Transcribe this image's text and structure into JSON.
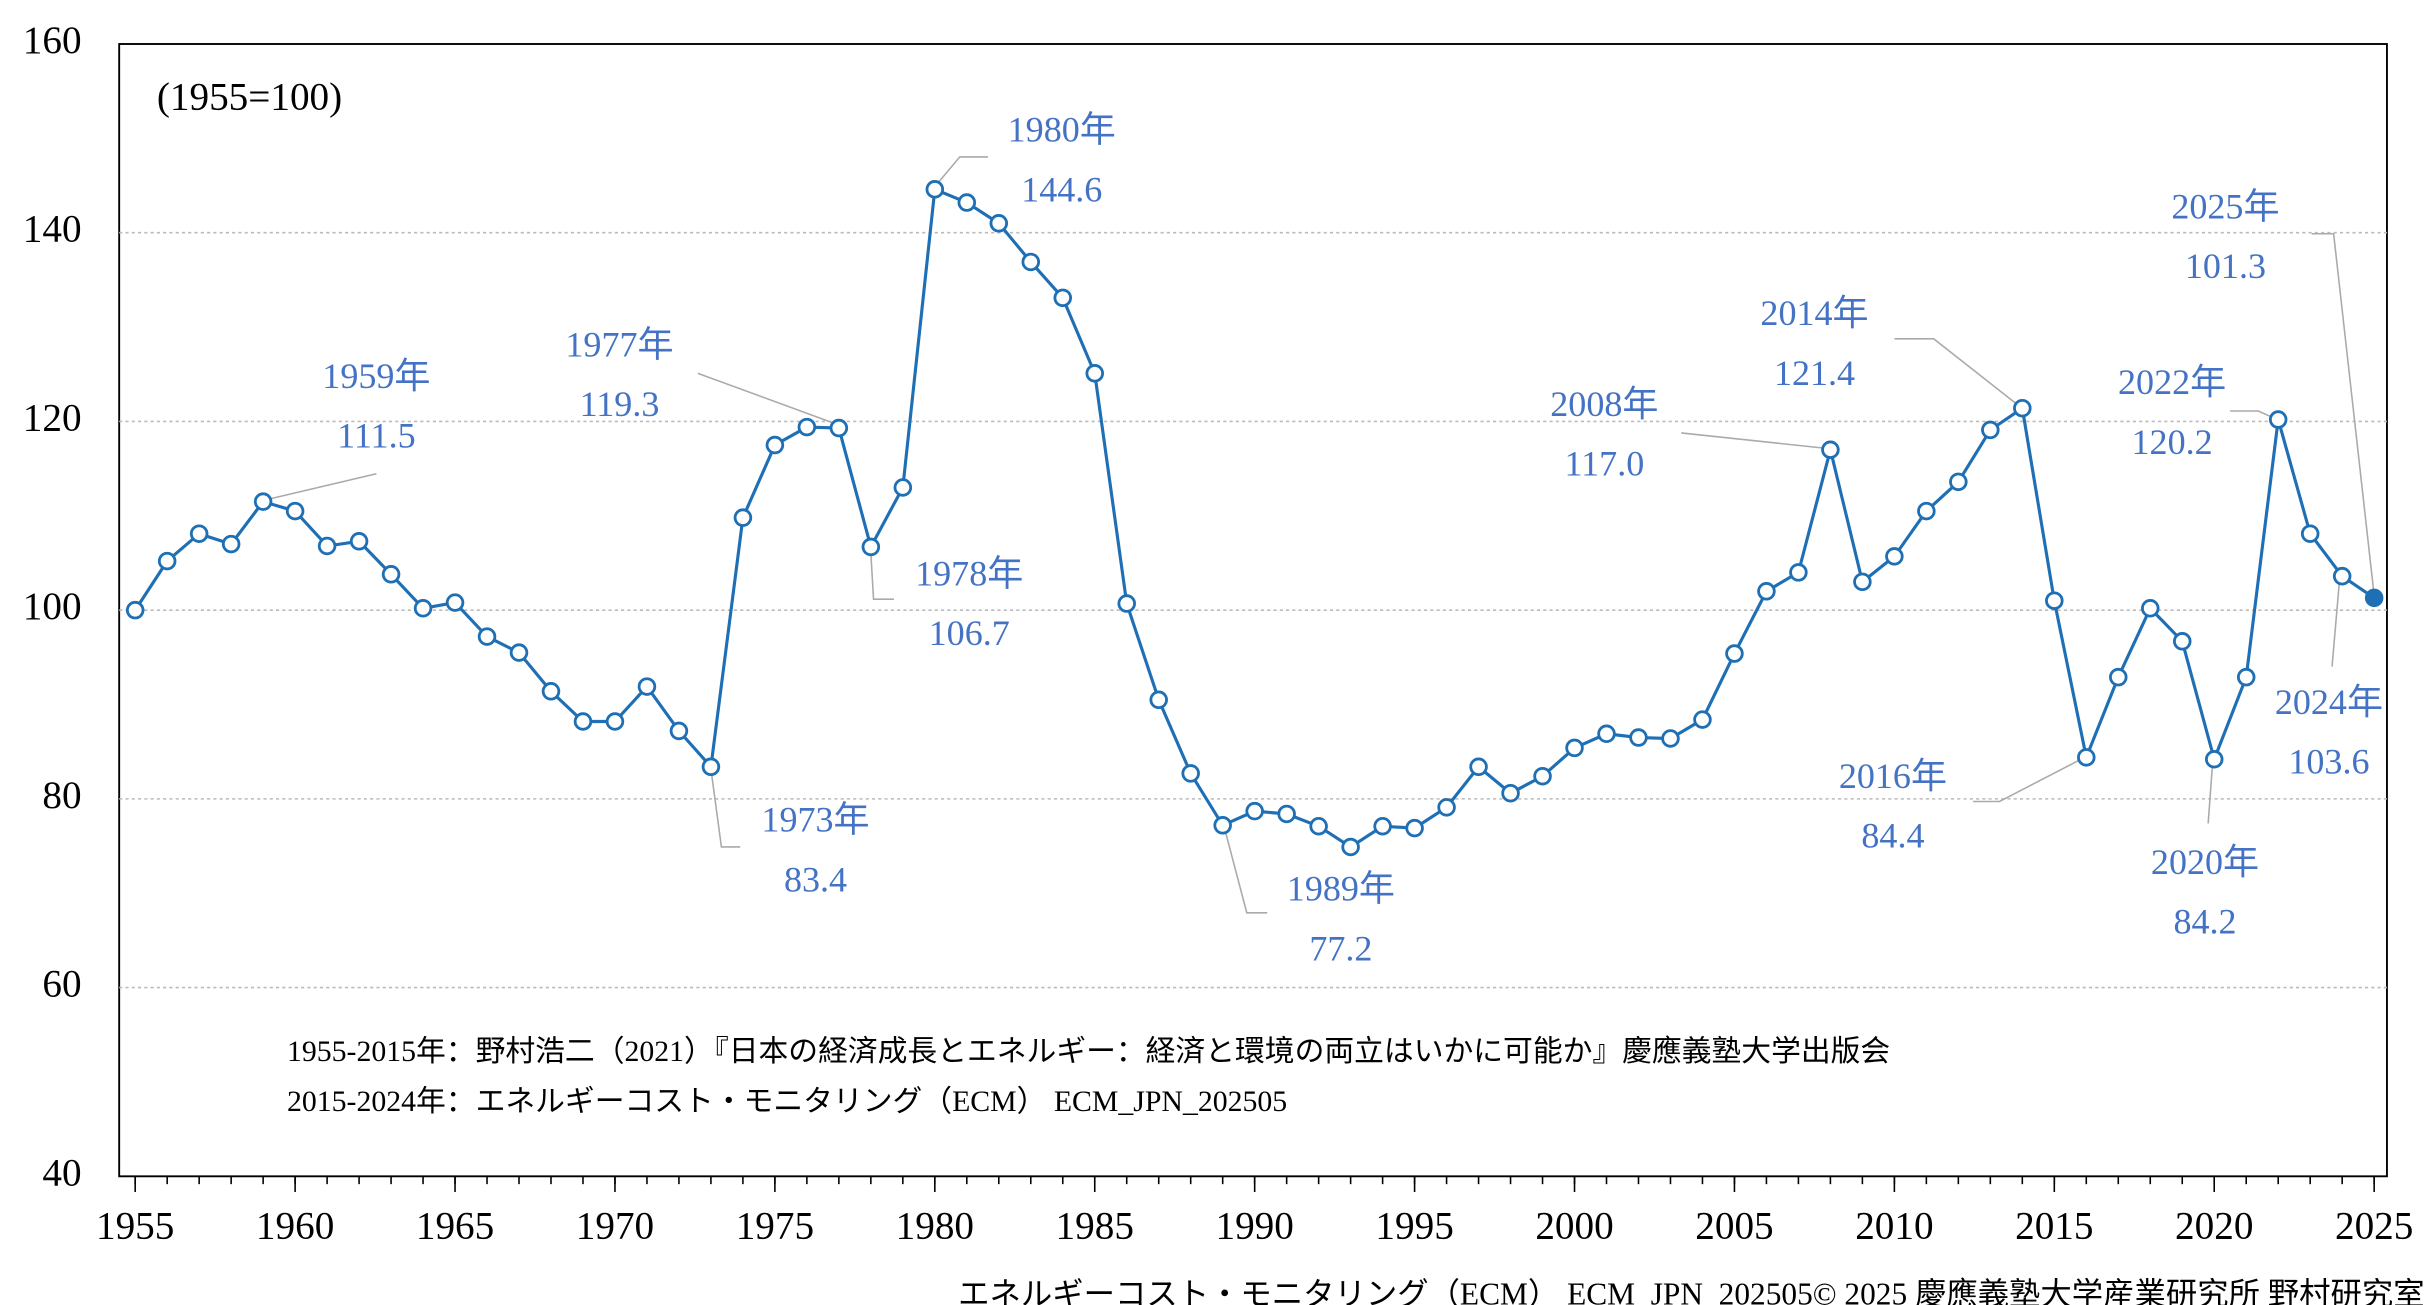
{
  "chart_data": {
    "type": "line",
    "note": "(1955=100)",
    "x": [
      1955,
      1956,
      1957,
      1958,
      1959,
      1960,
      1961,
      1962,
      1963,
      1964,
      1965,
      1966,
      1967,
      1968,
      1969,
      1970,
      1971,
      1972,
      1973,
      1974,
      1975,
      1976,
      1977,
      1978,
      1979,
      1980,
      1981,
      1982,
      1983,
      1984,
      1985,
      1986,
      1987,
      1988,
      1989,
      1990,
      1991,
      1992,
      1993,
      1994,
      1995,
      1996,
      1997,
      1998,
      1999,
      2000,
      2001,
      2002,
      2003,
      2004,
      2005,
      2006,
      2007,
      2008,
      2009,
      2010,
      2011,
      2012,
      2013,
      2014,
      2015,
      2016,
      2017,
      2018,
      2019,
      2020,
      2021,
      2022,
      2023,
      2024,
      2025
    ],
    "series": [
      {
        "color": "#1f6fb5",
        "values": [
          100,
          105.2,
          108.1,
          107,
          111.5,
          110.5,
          106.8,
          107.3,
          103.8,
          100.2,
          100.8,
          97.2,
          95.5,
          91.4,
          88.2,
          88.2,
          91.9,
          87.2,
          83.4,
          109.8,
          117.5,
          119.4,
          119.3,
          106.7,
          113,
          144.6,
          143.2,
          141,
          136.9,
          133.1,
          125.1,
          100.7,
          90.5,
          82.7,
          77.2,
          78.7,
          78.4,
          77.1,
          74.9,
          77.1,
          76.9,
          79.1,
          83.4,
          80.6,
          82.4,
          85.4,
          86.9,
          86.5,
          86.4,
          88.4,
          95.4,
          102,
          104,
          117,
          103,
          105.7,
          110.5,
          113.6,
          119.1,
          121.4,
          101,
          84.4,
          92.9,
          100.2,
          96.7,
          84.2,
          92.9,
          120.2,
          108.1,
          103.6,
          101.3
        ],
        "value_labels": [
          null,
          null,
          null,
          null,
          "111.5",
          null,
          null,
          null,
          null,
          null,
          null,
          null,
          null,
          null,
          null,
          null,
          null,
          null,
          "83.4",
          null,
          null,
          null,
          "119.3",
          "106.7",
          null,
          "144.6",
          null,
          null,
          null,
          null,
          null,
          null,
          null,
          null,
          "77.2",
          null,
          null,
          null,
          null,
          null,
          null,
          null,
          null,
          null,
          null,
          null,
          null,
          null,
          null,
          null,
          null,
          null,
          null,
          "117.0",
          null,
          null,
          null,
          null,
          null,
          "121.4",
          null,
          "84.4",
          null,
          null,
          null,
          "84.2",
          null,
          "120.2",
          null,
          "103.6",
          "101.3"
        ],
        "point_labels": [
          null,
          null,
          null,
          null,
          "1959年",
          null,
          null,
          null,
          null,
          null,
          null,
          null,
          null,
          null,
          null,
          null,
          null,
          null,
          "1973年",
          null,
          null,
          null,
          "1977年",
          "1978年",
          null,
          "1980年",
          null,
          null,
          null,
          null,
          null,
          null,
          null,
          null,
          "1989年",
          null,
          null,
          null,
          null,
          null,
          null,
          null,
          null,
          null,
          null,
          null,
          null,
          null,
          null,
          null,
          null,
          null,
          null,
          "2008年",
          null,
          null,
          null,
          null,
          null,
          "2014年",
          null,
          "2016年",
          null,
          null,
          null,
          "2020年",
          null,
          "2022年",
          null,
          "2024年",
          "2025年"
        ]
      }
    ],
    "xlim": [
      1954.5,
      2025.4
    ],
    "xticks": [
      1955,
      1960,
      1965,
      1970,
      1975,
      1980,
      1985,
      1990,
      1995,
      2000,
      2005,
      2010,
      2015,
      2020,
      2025
    ],
    "ylim": [
      40,
      160
    ],
    "yticks": [
      40,
      60,
      80,
      100,
      120,
      140,
      160
    ],
    "grid": true,
    "sources": [
      "1955-2015年：野村浩二（2021）『日本の経済成長とエネルギー：経済と環境の両立はいかに可能か』慶應義塾大学出版会",
      "2015-2024年：エネルギーコスト・モニタリング（ECM） ECM_JPN_202505"
    ],
    "footer": "エネルギーコスト・モニタリング（ECM） ECM_JPN_202505© 2025 慶應義塾大学産業研究所 野村研究室"
  }
}
